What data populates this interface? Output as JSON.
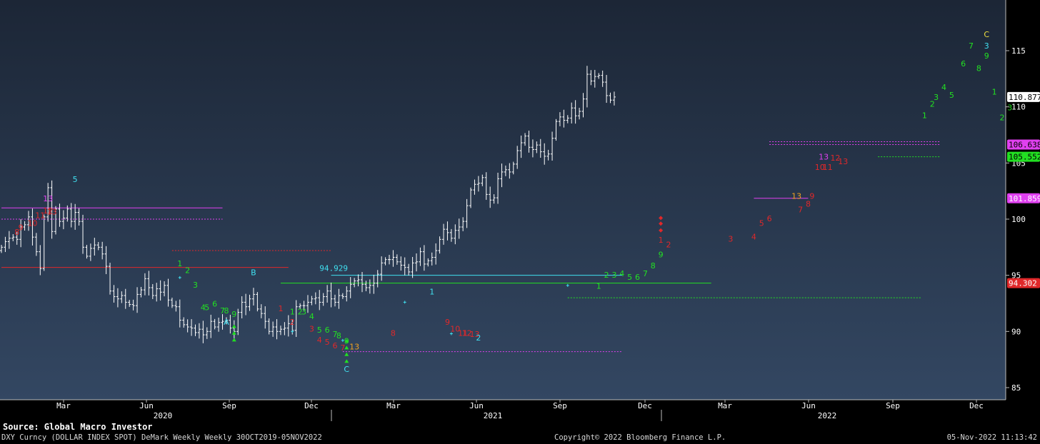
{
  "chart_data": {
    "type": "line",
    "title": "DXY Curncy (DOLLAR INDEX SPOT) DeMark Weekly",
    "y_ticks": [
      85,
      90,
      95,
      100,
      105,
      110,
      115
    ],
    "ylim": [
      84,
      118
    ],
    "month_labels": [
      "Mar",
      "Jun",
      "Sep",
      "Dec",
      "Mar",
      "Jun",
      "Sep",
      "Dec",
      "Mar",
      "Jun",
      "Sep",
      "Dec"
    ],
    "year_labels": [
      "2020",
      "2021",
      "2022"
    ],
    "colors": {
      "bg_top": "#1c2636",
      "bg_bottom": "#334762",
      "bar": "#ffffff",
      "green": "#22e022",
      "red": "#e0282a",
      "magenta": "#e040f0",
      "cyan": "#40e0f0",
      "orange": "#f0a020",
      "yellow": "#f0e040"
    },
    "price_tags": [
      {
        "value": "110.877",
        "level": 110.877,
        "bg": "#ffffff",
        "fg": "#000000"
      },
      {
        "value": "106.638",
        "level": 106.638,
        "bg": "#e040f0",
        "fg": "#000000"
      },
      {
        "value": "105.552",
        "level": 105.552,
        "bg": "#22e022",
        "fg": "#000000"
      },
      {
        "value": "101.859",
        "level": 101.859,
        "bg": "#e040f0",
        "fg": "#ffffff"
      },
      {
        "value": "94.302",
        "level": 94.302,
        "bg": "#e0282a",
        "fg": "#ffffff"
      }
    ],
    "annotation": "94.929",
    "series": [
      {
        "date": "2019-11",
        "values": [
          97.5,
          98.0,
          98.3,
          98.4,
          98.2,
          99.3,
          99.5,
          100.2,
          98.4,
          97.1,
          95.6,
          100.2,
          102.8,
          98.9,
          100.9,
          99.8,
          100.1,
          100.9,
          99.8,
          100.6,
          99.8,
          97.5,
          96.7,
          97.4,
          97.7,
          97.5,
          96.9,
          95.8,
          93.6,
          93.1,
          92.9,
          93.2,
          92.6,
          92.4,
          92.3,
          93.3,
          93.7,
          94.7,
          93.9,
          93.2,
          93.8,
          93.5,
          94.1,
          92.8,
          92.3,
          92.2,
          91.0,
          90.6,
          90.4,
          90.3,
          89.9,
          90.2,
          89.7,
          90.0,
          90.9,
          90.4,
          90.8,
          90.9,
          91.0,
          90.3,
          90.0,
          91.7,
          92.6,
          92.2,
          92.9,
          93.3,
          92.0,
          91.6,
          90.9,
          90.0,
          90.4,
          90.0,
          90.2,
          90.3,
          90.7,
          90.1,
          92.2,
          92.3,
          92.3,
          92.6,
          92.9,
          93.0,
          92.6,
          93.1,
          93.6,
          92.9,
          92.6,
          93.2,
          93.1,
          93.6,
          94.2,
          94.5,
          94.6,
          94.2,
          93.9,
          94.1,
          94.3,
          95.1,
          96.1,
          96.4,
          96.4,
          96.6,
          96.2,
          95.9,
          95.7,
          95.3,
          96.1,
          96.2,
          97.1,
          96.0,
          96.3,
          96.6,
          97.2,
          98.2,
          99.1,
          98.8,
          98.3,
          99.0,
          99.3,
          99.8,
          101.2,
          102.6,
          103.1,
          103.2,
          103.7,
          102.2,
          101.7,
          101.9,
          103.6,
          104.2,
          104.4,
          104.2,
          104.9,
          106.1,
          106.8,
          107.4,
          106.4,
          106.2,
          106.6,
          106.0,
          105.6,
          105.8,
          107.2,
          108.7,
          109.1,
          108.8,
          109.0,
          109.9,
          109.2,
          109.6,
          110.7,
          112.9,
          112.3,
          112.7,
          112.8,
          112.2,
          111.0,
          110.6,
          110.877
        ]
      }
    ],
    "td_labels": [
      {
        "text": "8",
        "color": "red",
        "week": 4,
        "price": 98.6
      },
      {
        "text": "9",
        "color": "red",
        "week": 5,
        "price": 99.0
      },
      {
        "text": "10",
        "color": "red",
        "week": 8,
        "price": 99.4
      },
      {
        "text": "11",
        "color": "red",
        "week": 10,
        "price": 100.1
      },
      {
        "text": "12",
        "color": "red",
        "week": 12,
        "price": 100.5
      },
      {
        "text": "13",
        "color": "red",
        "week": 13,
        "price": 100.4
      },
      {
        "text": "13",
        "color": "magenta",
        "week": 12,
        "price": 101.6
      },
      {
        "text": "5",
        "color": "cyan",
        "week": 19,
        "price": 103.3
      },
      {
        "text": "1",
        "color": "green",
        "week": 46,
        "price": 95.8
      },
      {
        "text": "2",
        "color": "green",
        "week": 48,
        "price": 95.2
      },
      {
        "text": "3",
        "color": "green",
        "week": 50,
        "price": 93.9
      },
      {
        "text": "4",
        "color": "green",
        "week": 52,
        "price": 91.9
      },
      {
        "text": "5",
        "color": "green",
        "week": 53,
        "price": 91.9
      },
      {
        "text": "6",
        "color": "green",
        "week": 55,
        "price": 92.2
      },
      {
        "text": "7",
        "color": "green",
        "week": 57,
        "price": 91.6
      },
      {
        "text": "8",
        "color": "green",
        "week": 58,
        "price": 91.6
      },
      {
        "text": "9",
        "color": "green",
        "week": 60,
        "price": 91.3
      },
      {
        "text": "A",
        "color": "cyan",
        "week": 58,
        "price": 90.6
      },
      {
        "text": "B",
        "color": "cyan",
        "week": 65,
        "price": 95.0
      },
      {
        "text": "1",
        "color": "red",
        "week": 72,
        "price": 91.8
      },
      {
        "text": "2",
        "color": "red",
        "week": 75,
        "price": 90.6
      },
      {
        "text": "1",
        "color": "green",
        "week": 75,
        "price": 91.5
      },
      {
        "text": "2",
        "color": "green",
        "week": 77,
        "price": 91.5
      },
      {
        "text": "3",
        "color": "green",
        "week": 78,
        "price": 91.5
      },
      {
        "text": "4",
        "color": "green",
        "week": 80,
        "price": 91.1
      },
      {
        "text": "5",
        "color": "green",
        "week": 82,
        "price": 89.9
      },
      {
        "text": "6",
        "color": "green",
        "week": 84,
        "price": 89.9
      },
      {
        "text": "7",
        "color": "green",
        "week": 86,
        "price": 89.5
      },
      {
        "text": "8",
        "color": "green",
        "week": 87,
        "price": 89.4
      },
      {
        "text": "9",
        "color": "green",
        "week": 89,
        "price": 88.9
      },
      {
        "text": "3",
        "color": "red",
        "week": 80,
        "price": 90.0
      },
      {
        "text": "4",
        "color": "red",
        "week": 82,
        "price": 89.0
      },
      {
        "text": "5",
        "color": "red",
        "week": 84,
        "price": 88.8
      },
      {
        "text": "6",
        "color": "red",
        "week": 86,
        "price": 88.5
      },
      {
        "text": "7",
        "color": "red",
        "week": 88,
        "price": 88.3
      },
      {
        "text": "13",
        "color": "orange",
        "week": 91,
        "price": 88.4
      },
      {
        "text": "C",
        "color": "cyan",
        "week": 89,
        "price": 86.4
      },
      {
        "text": "8",
        "color": "red",
        "week": 101,
        "price": 89.6
      },
      {
        "text": "1",
        "color": "cyan",
        "week": 111,
        "price": 93.3
      },
      {
        "text": "9",
        "color": "red",
        "week": 115,
        "price": 90.6
      },
      {
        "text": "10",
        "color": "red",
        "week": 117,
        "price": 90.0
      },
      {
        "text": "11",
        "color": "red",
        "week": 119,
        "price": 89.6
      },
      {
        "text": "12",
        "color": "red",
        "week": 120,
        "price": 89.6
      },
      {
        "text": "13",
        "color": "red",
        "week": 122,
        "price": 89.5
      },
      {
        "text": "2",
        "color": "cyan",
        "week": 123,
        "price": 89.2
      },
      {
        "text": "1",
        "color": "green",
        "week": 154,
        "price": 93.8
      },
      {
        "text": "2",
        "color": "green",
        "week": 156,
        "price": 94.8
      },
      {
        "text": "3",
        "color": "green",
        "week": 158,
        "price": 94.8
      },
      {
        "text": "4",
        "color": "green",
        "week": 160,
        "price": 94.9
      },
      {
        "text": "5",
        "color": "green",
        "week": 162,
        "price": 94.6
      },
      {
        "text": "6",
        "color": "green",
        "week": 164,
        "price": 94.6
      },
      {
        "text": "7",
        "color": "green",
        "week": 166,
        "price": 94.9
      },
      {
        "text": "8",
        "color": "green",
        "week": 168,
        "price": 95.6
      },
      {
        "text": "9",
        "color": "green",
        "week": 170,
        "price": 96.6
      },
      {
        "text": "1",
        "color": "red",
        "week": 170,
        "price": 97.9
      },
      {
        "text": "2",
        "color": "red",
        "week": 172,
        "price": 97.5
      },
      {
        "text": "3",
        "color": "red",
        "week": 188,
        "price": 98.0
      },
      {
        "text": "4",
        "color": "red",
        "week": 194,
        "price": 98.2
      },
      {
        "text": "5",
        "color": "red",
        "week": 196,
        "price": 99.4
      },
      {
        "text": "6",
        "color": "red",
        "week": 198,
        "price": 99.8
      },
      {
        "text": "7",
        "color": "red",
        "week": 206,
        "price": 100.6
      },
      {
        "text": "8",
        "color": "red",
        "week": 208,
        "price": 101.1
      },
      {
        "text": "9",
        "color": "red",
        "week": 209,
        "price": 101.8
      },
      {
        "text": "13",
        "color": "orange",
        "week": 205,
        "price": 101.8
      },
      {
        "text": "10",
        "color": "red",
        "week": 211,
        "price": 104.4
      },
      {
        "text": "11",
        "color": "red",
        "week": 213,
        "price": 104.4
      },
      {
        "text": "12",
        "color": "red",
        "week": 215,
        "price": 105.2
      },
      {
        "text": "13",
        "color": "red",
        "week": 217,
        "price": 104.9
      },
      {
        "text": "13",
        "color": "magenta",
        "week": 212,
        "price": 105.3
      },
      {
        "text": "1",
        "color": "green",
        "week": 238,
        "price": 109.0
      },
      {
        "text": "2",
        "color": "green",
        "week": 240,
        "price": 110.0
      },
      {
        "text": "3",
        "color": "green",
        "week": 241,
        "price": 110.6
      },
      {
        "text": "4",
        "color": "green",
        "week": 243,
        "price": 111.5
      },
      {
        "text": "5",
        "color": "green",
        "week": 245,
        "price": 110.8
      },
      {
        "text": "6",
        "color": "green",
        "week": 248,
        "price": 113.6
      },
      {
        "text": "7",
        "color": "green",
        "week": 250,
        "price": 115.2
      },
      {
        "text": "8",
        "color": "green",
        "week": 252,
        "price": 113.2
      },
      {
        "text": "9",
        "color": "green",
        "week": 254,
        "price": 114.3
      },
      {
        "text": "3",
        "color": "cyan",
        "week": 254,
        "price": 115.2
      },
      {
        "text": "C",
        "color": "yellow",
        "week": 254,
        "price": 116.2
      },
      {
        "text": "1",
        "color": "green",
        "week": 256,
        "price": 111.1
      },
      {
        "text": "2",
        "color": "green",
        "week": 258,
        "price": 108.8
      },
      {
        "text": "3",
        "color": "green",
        "week": 260,
        "price": 109.7
      }
    ]
  },
  "footer": {
    "source": "Source: Global Macro Investor",
    "ticker": "DXY Curncy (DOLLAR INDEX SPOT) DeMark Weekly  Weekly 30OCT2019-05NOV2022",
    "copyright": "Copyright© 2022 Bloomberg Finance L.P.",
    "timestamp": "05-Nov-2022 11:13:42"
  }
}
